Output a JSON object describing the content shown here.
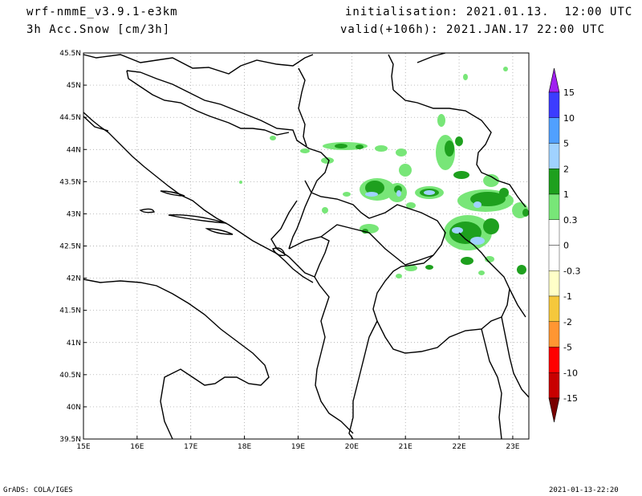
{
  "header": {
    "model": "wrf-nmmE_v3.9.1-e3km",
    "variable": "3h Acc.Snow [cm/3h]",
    "init": "initialisation: 2021.01.13.  12:00 UTC",
    "valid": "valid(+106h): 2021.JAN.17 22:00 UTC"
  },
  "footer": {
    "left": "GrADS: COLA/IGES",
    "right": "2021-01-13-22:20"
  },
  "map": {
    "lon_range": [
      15,
      23.3
    ],
    "lat_range": [
      39.5,
      45.5
    ],
    "x_ticks": [
      "15E",
      "16E",
      "17E",
      "18E",
      "19E",
      "20E",
      "21E",
      "22E",
      "23E"
    ],
    "y_ticks": [
      "39.5N",
      "40N",
      "40.5N",
      "41N",
      "41.5N",
      "42N",
      "42.5N",
      "43N",
      "43.5N",
      "44N",
      "44.5N",
      "45N",
      "45.5N"
    ]
  },
  "colorbar": {
    "labels": [
      "15",
      "10",
      "5",
      "2",
      "1",
      "0.3",
      "0",
      "-0.3",
      "-1",
      "-2",
      "-5",
      "-10",
      "-15"
    ],
    "colors": {
      "top": "#a020f0",
      "c10_15": "#3c3cff",
      "c5_10": "#50a0ff",
      "c2_5": "#a0d2ff",
      "c1_2": "#1ea01e",
      "c03_1": "#78e678",
      "c0": "#ffffff",
      "cn03": "#ffffc8",
      "cn1": "#f5c83c",
      "cn2": "#ff9632",
      "cn5": "#ff0000",
      "cn10": "#c80000",
      "bottom": "#780000"
    }
  }
}
